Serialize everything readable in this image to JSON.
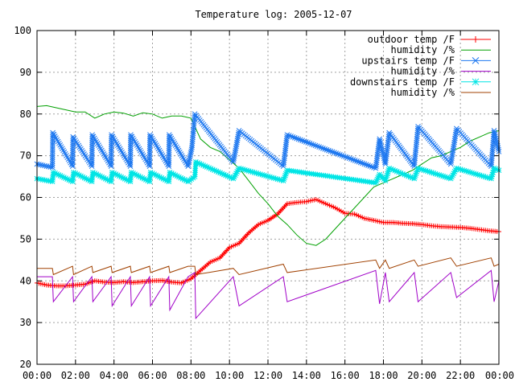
{
  "chart_data": {
    "type": "line",
    "title": "Temperature log: 2005-12-07",
    "xlabel": "",
    "ylabel": "",
    "xlim_hours": [
      0,
      24
    ],
    "ylim": [
      20,
      100
    ],
    "x_ticks": [
      "00:00",
      "02:00",
      "04:00",
      "06:00",
      "08:00",
      "10:00",
      "12:00",
      "14:00",
      "16:00",
      "18:00",
      "20:00",
      "22:00",
      "00:00"
    ],
    "y_ticks": [
      20,
      30,
      40,
      50,
      60,
      70,
      80,
      90,
      100
    ],
    "grid": true,
    "legend_position": "top-right",
    "series": [
      {
        "name": "outdoor temp /F",
        "color": "#ff0000",
        "marker": "plus",
        "x": [
          0,
          0.5,
          1,
          1.5,
          2,
          2.5,
          3,
          3.5,
          4,
          4.5,
          5,
          5.5,
          6,
          6.5,
          7,
          7.5,
          8,
          8.5,
          9,
          9.5,
          10,
          10.5,
          11,
          11.5,
          12,
          12.5,
          13,
          13.5,
          14,
          14.5,
          15,
          15.5,
          16,
          16.5,
          17,
          17.5,
          18,
          18.5,
          19,
          19.5,
          20,
          20.5,
          21,
          21.5,
          22,
          22.5,
          23,
          23.5,
          24
        ],
        "values": [
          39.5,
          39,
          38.8,
          38.8,
          39,
          39.2,
          40,
          39.7,
          39.6,
          39.8,
          39.6,
          39.8,
          40,
          40.1,
          39.7,
          39.5,
          40.5,
          42.5,
          44.5,
          45.5,
          48,
          49,
          51.5,
          53.5,
          54.5,
          56,
          58.5,
          58.8,
          59,
          59.5,
          58.5,
          57.5,
          56.2,
          56,
          55,
          54.5,
          54,
          54,
          53.8,
          53.7,
          53.5,
          53.2,
          53,
          52.9,
          52.8,
          52.6,
          52.3,
          52,
          51.8
        ]
      },
      {
        "name": "humidity /%",
        "color": "#00a000",
        "marker": "none",
        "x": [
          0,
          0.5,
          1,
          1.5,
          2,
          2.5,
          3,
          3.5,
          4,
          4.5,
          5,
          5.5,
          6,
          6.5,
          7,
          7.5,
          8,
          8.5,
          9,
          9.5,
          10,
          10.5,
          11,
          11.5,
          12,
          12.5,
          13,
          13.5,
          14,
          14.5,
          15,
          15.5,
          16,
          16.5,
          17,
          17.5,
          18,
          18.5,
          19,
          19.5,
          20,
          20.5,
          21,
          21.5,
          22,
          22.5,
          23,
          23.5,
          24
        ],
        "values": [
          81.8,
          82,
          81.5,
          81,
          80.5,
          80.5,
          79,
          80,
          80.5,
          80.2,
          79.5,
          80.3,
          80,
          79,
          79.5,
          79.5,
          79,
          74,
          72,
          71,
          69,
          67,
          64,
          61,
          58.5,
          55.5,
          53.5,
          51,
          49,
          48.5,
          50,
          52.5,
          55,
          57.5,
          60,
          62.5,
          63.5,
          64.5,
          65.5,
          66.5,
          68,
          69.5,
          70,
          71,
          72,
          73.5,
          74.5,
          75.5,
          76
        ]
      },
      {
        "name": "upstairs temp /F",
        "color": "#1e78f0",
        "marker": "cross",
        "x": [
          0,
          0.8,
          0.82,
          1.85,
          1.87,
          2.85,
          2.87,
          3.85,
          3.87,
          4.85,
          4.87,
          5.85,
          5.87,
          6.85,
          6.87,
          7.85,
          8.05,
          8.2,
          10.2,
          10.5,
          12.8,
          13.0,
          17.6,
          17.8,
          18.1,
          18.3,
          19.6,
          19.8,
          21.5,
          21.8,
          23.6,
          23.75,
          24
        ],
        "values": [
          68,
          67.2,
          75.5,
          67.5,
          74.5,
          67.5,
          75,
          67.5,
          75,
          67.5,
          75,
          67.5,
          75,
          67.5,
          75,
          67.5,
          72,
          80,
          68.5,
          76,
          67.5,
          75,
          67,
          74,
          68,
          75.5,
          67.5,
          77,
          68,
          76.5,
          67.5,
          76,
          71
        ]
      },
      {
        "name": "humidity /%",
        "color": "#a000c8",
        "marker": "none",
        "x": [
          0,
          0.8,
          0.85,
          1.85,
          1.9,
          2.85,
          2.9,
          3.85,
          3.9,
          4.85,
          4.9,
          5.85,
          5.9,
          6.85,
          6.9,
          7.85,
          8.2,
          8.25,
          10.2,
          10.5,
          12.8,
          13.0,
          17.6,
          17.8,
          18.1,
          18.3,
          19.6,
          19.8,
          21.5,
          21.8,
          23.6,
          23.75,
          24
        ],
        "values": [
          41,
          41,
          35,
          41,
          35,
          41,
          35,
          41,
          34,
          41,
          34,
          41,
          34,
          41,
          33,
          41,
          42,
          31,
          41,
          34,
          41,
          35,
          42.5,
          34.5,
          42,
          35,
          42,
          35,
          42,
          36,
          42.5,
          35,
          40
        ]
      },
      {
        "name": "downstairs temp /F",
        "color": "#00e5e5",
        "marker": "star",
        "x": [
          0,
          0.8,
          0.85,
          1.85,
          1.9,
          2.85,
          2.9,
          3.85,
          3.9,
          4.85,
          4.9,
          5.85,
          5.9,
          6.85,
          6.9,
          7.85,
          8.2,
          8.25,
          10.2,
          10.5,
          12.8,
          13.0,
          17.6,
          17.8,
          18.1,
          18.3,
          19.6,
          19.8,
          21.5,
          21.8,
          23.6,
          23.75,
          24
        ],
        "values": [
          64.5,
          63.8,
          66,
          63.8,
          66,
          63.8,
          66,
          63.8,
          66,
          63.8,
          66,
          63.8,
          66,
          63.8,
          66,
          63.8,
          65,
          68.5,
          64.5,
          67,
          64,
          66.5,
          63.5,
          65.5,
          64,
          67,
          64.5,
          67,
          64.5,
          67,
          64.5,
          67,
          66.5
        ]
      },
      {
        "name": "humidity /%",
        "color": "#a04000",
        "marker": "none",
        "x": [
          0,
          0.8,
          0.85,
          1.85,
          1.9,
          2.85,
          2.9,
          3.85,
          3.9,
          4.85,
          4.9,
          5.85,
          5.9,
          6.85,
          6.9,
          7.85,
          8.2,
          8.25,
          10.2,
          10.5,
          12.8,
          13.0,
          17.6,
          17.8,
          18.1,
          18.3,
          19.6,
          19.8,
          21.5,
          21.8,
          23.6,
          23.75,
          24
        ],
        "values": [
          43,
          43,
          41.5,
          43.5,
          41.5,
          43.5,
          42,
          43.5,
          42,
          43.5,
          42,
          43.5,
          42,
          43.5,
          42,
          43.5,
          43.5,
          41.5,
          43,
          41.5,
          44,
          42,
          45,
          43,
          45,
          43,
          45,
          43.5,
          45.5,
          43.5,
          45.5,
          43.5,
          44
        ]
      }
    ]
  }
}
